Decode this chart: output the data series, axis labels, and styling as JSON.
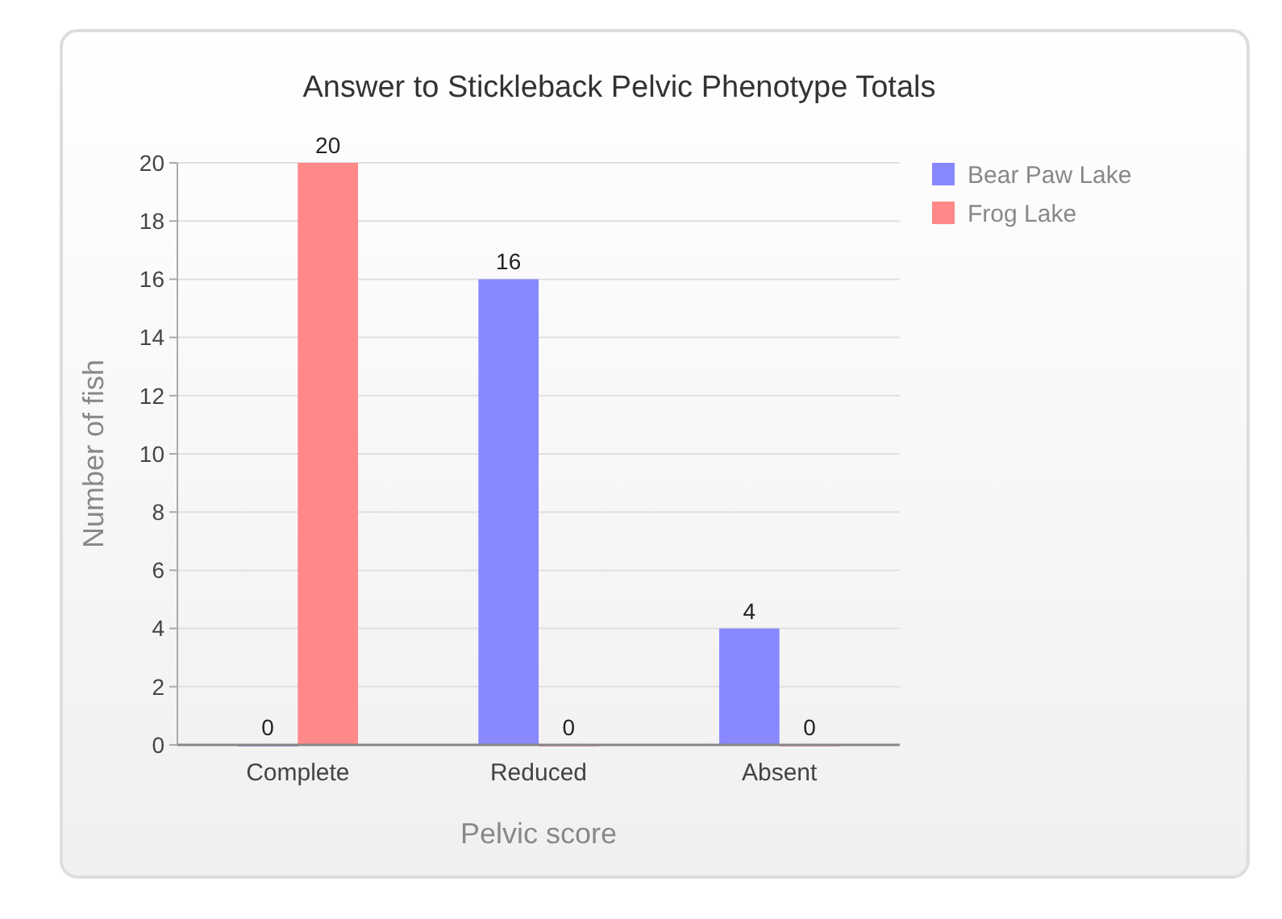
{
  "chart_data": {
    "type": "bar",
    "title": "Answer to Stickleback Pelvic Phenotype Totals",
    "xlabel": "Pelvic score",
    "ylabel": "Number of fish",
    "categories": [
      "Complete",
      "Reduced",
      "Absent"
    ],
    "series": [
      {
        "name": "Bear Paw Lake",
        "color": "#8888ff",
        "values": [
          0,
          16,
          4
        ]
      },
      {
        "name": "Frog Lake",
        "color": "#ff8888",
        "values": [
          20,
          0,
          0
        ]
      }
    ],
    "ylim": [
      0,
      20
    ],
    "yticks": [
      0,
      2,
      4,
      6,
      8,
      10,
      12,
      14,
      16,
      18,
      20
    ],
    "grid": "y",
    "legend": "right",
    "data_labels": true
  }
}
